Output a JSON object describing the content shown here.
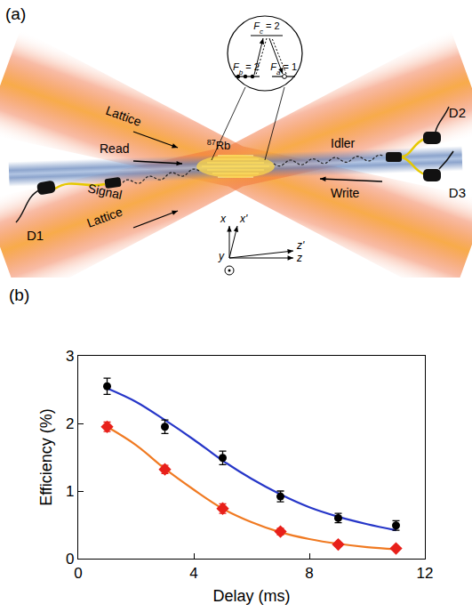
{
  "diagram": {
    "panel_label": "(a)",
    "labels": {
      "lattice_upper": "Lattice",
      "lattice_lower": "Lattice",
      "read": "Read",
      "write": "Write",
      "signal": "Signal",
      "idler": "Idler",
      "d1": "D1",
      "d2": "D2",
      "d3": "D3"
    },
    "atom": {
      "mass": "87",
      "element": "Rb"
    },
    "levels": {
      "c": {
        "symbol": "F",
        "sub": "c",
        "rest": " = 2"
      },
      "b": {
        "symbol": "F",
        "sub": "b",
        "rest": " = 2"
      },
      "a": {
        "symbol": "F",
        "sub": "a",
        "rest": " = 1"
      }
    },
    "axes": {
      "x": "x",
      "x_prime": "x'",
      "y": "y",
      "z": "z",
      "z_prime": "z'"
    }
  },
  "chart_data": {
    "type": "scatter",
    "panel_label": "(b)",
    "xlabel": "Delay (ms)",
    "ylabel": "Efficiency (%)",
    "xlim": [
      0,
      12
    ],
    "ylim": [
      0,
      3
    ],
    "xticks": [
      0,
      4,
      8,
      12
    ],
    "yticks": [
      0,
      1,
      2,
      3
    ],
    "grid": false,
    "series": [
      {
        "type": "line",
        "color": "#2636c8",
        "line_style": "solid",
        "x": [
          1,
          2,
          3,
          4,
          5,
          6,
          7,
          8,
          9,
          10,
          11
        ],
        "values": [
          2.52,
          2.32,
          2.05,
          1.76,
          1.45,
          1.18,
          0.95,
          0.76,
          0.62,
          0.51,
          0.42
        ]
      },
      {
        "type": "line",
        "color": "#f07a22",
        "line_style": "solid",
        "x": [
          1,
          2,
          3,
          4,
          5,
          6,
          7,
          8,
          9,
          10,
          11
        ],
        "values": [
          1.95,
          1.68,
          1.33,
          1.02,
          0.74,
          0.54,
          0.39,
          0.29,
          0.22,
          0.17,
          0.14
        ]
      },
      {
        "type": "scatter",
        "color": "#000000",
        "marker": "circle",
        "x": [
          1,
          3,
          5,
          7,
          9,
          11
        ],
        "values": [
          2.55,
          1.95,
          1.49,
          0.92,
          0.6,
          0.49
        ],
        "errors": [
          0.12,
          0.1,
          0.1,
          0.08,
          0.07,
          0.07
        ]
      },
      {
        "type": "scatter",
        "color": "#e8201a",
        "marker": "diamond",
        "x": [
          1,
          3,
          5,
          7,
          9,
          11
        ],
        "values": [
          1.95,
          1.32,
          0.74,
          0.4,
          0.21,
          0.15
        ],
        "errors": [
          0.07,
          0.06,
          0.07,
          0.05,
          0.03,
          0.02
        ]
      }
    ]
  }
}
